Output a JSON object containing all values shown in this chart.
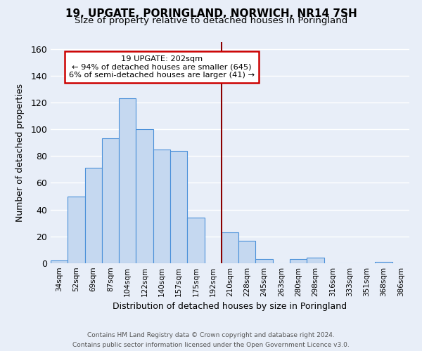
{
  "title": "19, UPGATE, PORINGLAND, NORWICH, NR14 7SH",
  "subtitle": "Size of property relative to detached houses in Poringland",
  "xlabel": "Distribution of detached houses by size in Poringland",
  "ylabel": "Number of detached properties",
  "bar_labels": [
    "34sqm",
    "52sqm",
    "69sqm",
    "87sqm",
    "104sqm",
    "122sqm",
    "140sqm",
    "157sqm",
    "175sqm",
    "192sqm",
    "210sqm",
    "228sqm",
    "245sqm",
    "263sqm",
    "280sqm",
    "298sqm",
    "316sqm",
    "333sqm",
    "351sqm",
    "368sqm",
    "386sqm"
  ],
  "bar_values": [
    2,
    50,
    71,
    93,
    123,
    100,
    85,
    84,
    34,
    0,
    23,
    17,
    3,
    0,
    3,
    4,
    0,
    0,
    0,
    1,
    0
  ],
  "bar_color": "#c5d8f0",
  "bar_edge_color": "#4a90d9",
  "ylim": [
    0,
    165
  ],
  "yticks": [
    0,
    20,
    40,
    60,
    80,
    100,
    120,
    140,
    160
  ],
  "marker_color": "#8b0000",
  "annotation_title": "19 UPGATE: 202sqm",
  "annotation_line1": "← 94% of detached houses are smaller (645)",
  "annotation_line2": "6% of semi-detached houses are larger (41) →",
  "annotation_box_color": "#ffffff",
  "annotation_box_edge_color": "#cc0000",
  "footer_line1": "Contains HM Land Registry data © Crown copyright and database right 2024.",
  "footer_line2": "Contains public sector information licensed under the Open Government Licence v3.0.",
  "background_color": "#e8eef8",
  "plot_background_color": "#e8eef8",
  "grid_color": "#ffffff",
  "title_fontsize": 11,
  "subtitle_fontsize": 9.5
}
